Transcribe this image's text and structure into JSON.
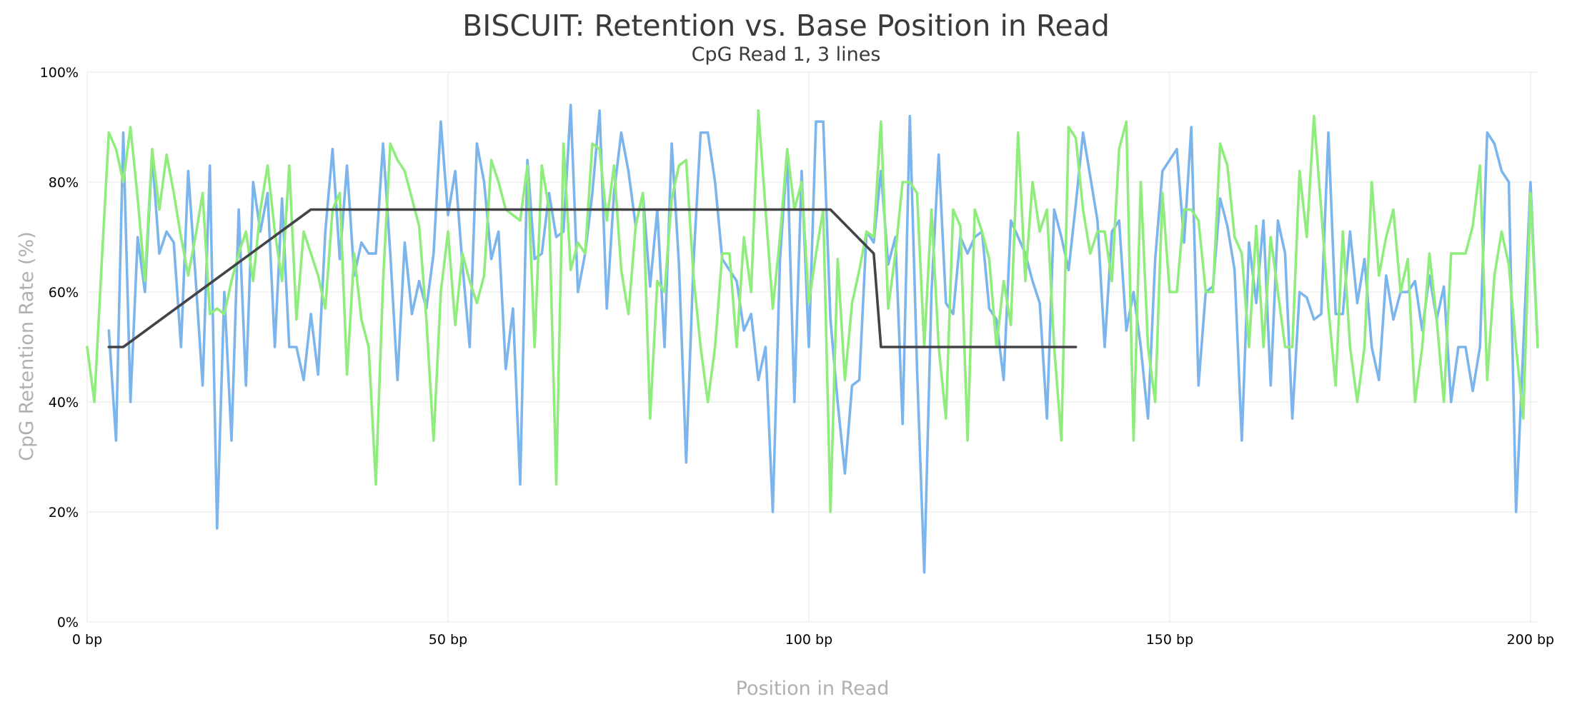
{
  "chart_data": {
    "type": "line",
    "title": "BISCUIT: Retention vs. Base Position in Read",
    "subtitle": "CpG Read 1, 3 lines",
    "xlabel": "Position in Read",
    "ylabel": "CpG Retention Rate (%)",
    "xlim": [
      0,
      201
    ],
    "ylim": [
      0,
      100
    ],
    "x_ticks": [
      {
        "value": 0,
        "label": "0 bp"
      },
      {
        "value": 50,
        "label": "50 bp"
      },
      {
        "value": 100,
        "label": "100 bp"
      },
      {
        "value": 150,
        "label": "150 bp"
      },
      {
        "value": 200,
        "label": "200 bp"
      }
    ],
    "y_ticks": [
      {
        "value": 0,
        "label": "0%"
      },
      {
        "value": 20,
        "label": "20%"
      },
      {
        "value": 40,
        "label": "40%"
      },
      {
        "value": 60,
        "label": "60%"
      },
      {
        "value": 80,
        "label": "80%"
      },
      {
        "value": 100,
        "label": "100%"
      }
    ],
    "grid": true,
    "legend": "none",
    "series": [
      {
        "color": "#7cb5ec",
        "x": [
          3,
          4,
          5,
          6,
          7,
          8,
          9,
          10,
          11,
          12,
          13,
          14,
          15,
          16,
          17,
          18,
          19,
          20,
          21,
          22,
          23,
          24,
          25,
          26,
          27,
          28,
          29,
          30,
          31,
          32,
          33,
          34,
          35,
          36,
          37,
          38,
          39,
          40,
          41,
          42,
          43,
          44,
          45,
          46,
          47,
          48,
          49,
          50,
          51,
          52,
          53,
          54,
          55,
          56,
          57,
          58,
          59,
          60,
          61,
          62,
          63,
          64,
          65,
          66,
          67,
          68,
          69,
          70,
          71,
          72,
          73,
          74,
          75,
          76,
          77,
          78,
          79,
          80,
          81,
          82,
          83,
          84,
          85,
          86,
          87,
          88,
          89,
          90,
          91,
          92,
          93,
          94,
          95,
          96,
          97,
          98,
          99,
          100,
          101,
          102,
          103,
          104,
          105,
          106,
          107,
          108,
          109,
          110,
          111,
          112,
          113,
          114,
          115,
          116,
          117,
          118,
          119,
          120,
          121,
          122,
          123,
          124,
          125,
          126,
          127,
          128,
          129,
          130,
          131,
          132,
          133,
          134,
          135,
          136,
          137,
          138,
          139,
          140,
          141,
          142,
          143,
          144,
          145,
          146,
          147,
          148,
          149,
          150,
          151,
          152,
          153,
          154,
          155,
          156,
          157,
          158,
          159,
          160,
          161,
          162,
          163,
          164,
          165,
          166,
          167,
          168,
          169,
          170,
          171,
          172,
          173,
          174,
          175,
          176,
          177,
          178,
          179,
          180,
          181,
          182,
          183,
          184,
          185,
          186,
          187,
          188,
          189,
          190,
          191,
          192,
          193,
          194,
          195,
          196,
          197,
          198,
          199,
          200,
          201
        ],
        "y": [
          53,
          33,
          89,
          40,
          70,
          60,
          85,
          67,
          71,
          69,
          50,
          82,
          63,
          43,
          83,
          17,
          60,
          33,
          75,
          43,
          80,
          71,
          78,
          50,
          77,
          50,
          50,
          44,
          56,
          45,
          71,
          86,
          66,
          83,
          63,
          69,
          67,
          67,
          87,
          67,
          44,
          69,
          56,
          62,
          57,
          67,
          91,
          74,
          82,
          65,
          50,
          87,
          80,
          66,
          71,
          46,
          57,
          25,
          84,
          66,
          67,
          78,
          70,
          71,
          94,
          60,
          67,
          78,
          93,
          57,
          78,
          89,
          82,
          72,
          78,
          61,
          75,
          50,
          87,
          65,
          29,
          65,
          89,
          89,
          80,
          66,
          64,
          62,
          53,
          56,
          44,
          50,
          20,
          66,
          85,
          40,
          82,
          50,
          91,
          91,
          55,
          40,
          27,
          43,
          44,
          71,
          69,
          82,
          65,
          70,
          36,
          92,
          46,
          9,
          60,
          85,
          58,
          56,
          70,
          67,
          70,
          71,
          57,
          55,
          44,
          73,
          70,
          67,
          62,
          58,
          37,
          75,
          70,
          64,
          76,
          89,
          81,
          73,
          50,
          71,
          73,
          53,
          60,
          50,
          37,
          66,
          82,
          84,
          86,
          69,
          90,
          43,
          60,
          61,
          77,
          72,
          64,
          33,
          69,
          58,
          73,
          43,
          73,
          67,
          37,
          60,
          59,
          55,
          56,
          89,
          56,
          56,
          71,
          58,
          66,
          50,
          44,
          63,
          55,
          60,
          60,
          62,
          53,
          63,
          55,
          61,
          40,
          50,
          50,
          42,
          50,
          89,
          87,
          82,
          80,
          20,
          50,
          80,
          50
        ]
      },
      {
        "color": "#90ed7d",
        "x": [
          0,
          1,
          2,
          3,
          4,
          5,
          6,
          7,
          8,
          9,
          10,
          11,
          12,
          13,
          14,
          15,
          16,
          17,
          18,
          19,
          20,
          21,
          22,
          23,
          24,
          25,
          26,
          27,
          28,
          29,
          30,
          31,
          32,
          33,
          34,
          35,
          36,
          37,
          38,
          39,
          40,
          41,
          42,
          43,
          44,
          45,
          46,
          47,
          48,
          49,
          50,
          51,
          52,
          53,
          54,
          55,
          56,
          57,
          58,
          59,
          60,
          61,
          62,
          63,
          64,
          65,
          66,
          67,
          68,
          69,
          70,
          71,
          72,
          73,
          74,
          75,
          76,
          77,
          78,
          79,
          80,
          81,
          82,
          83,
          84,
          85,
          86,
          87,
          88,
          89,
          90,
          91,
          92,
          93,
          94,
          95,
          96,
          97,
          98,
          99,
          100,
          101,
          102,
          103,
          104,
          105,
          106,
          107,
          108,
          109,
          110,
          111,
          112,
          113,
          114,
          115,
          116,
          117,
          118,
          119,
          120,
          121,
          122,
          123,
          124,
          125,
          126,
          127,
          128,
          129,
          130,
          131,
          132,
          133,
          134,
          135,
          136,
          137,
          138,
          139,
          140,
          141,
          142,
          143,
          144,
          145,
          146,
          147,
          148,
          149,
          150,
          151,
          152,
          153,
          154,
          155,
          156,
          157,
          158,
          159,
          160,
          161,
          162,
          163,
          164,
          165,
          166,
          167,
          168,
          169,
          170,
          171,
          172,
          173,
          174,
          175,
          176,
          177,
          178,
          179,
          180,
          181,
          182,
          183,
          184,
          185,
          186,
          187,
          188,
          189,
          190,
          191,
          192,
          193,
          194,
          195,
          196,
          197,
          198,
          199,
          200,
          201
        ],
        "y": [
          50,
          40,
          65,
          89,
          86,
          80,
          90,
          77,
          62,
          86,
          75,
          85,
          78,
          70,
          63,
          70,
          78,
          56,
          57,
          56,
          62,
          67,
          71,
          62,
          75,
          83,
          71,
          62,
          83,
          55,
          71,
          67,
          63,
          57,
          75,
          78,
          45,
          67,
          55,
          50,
          25,
          62,
          87,
          84,
          82,
          77,
          72,
          55,
          33,
          60,
          71,
          54,
          67,
          62,
          58,
          63,
          84,
          80,
          75,
          74,
          73,
          83,
          50,
          83,
          75,
          25,
          87,
          64,
          69,
          67,
          87,
          86,
          73,
          83,
          64,
          56,
          72,
          78,
          37,
          62,
          60,
          77,
          83,
          84,
          63,
          50,
          40,
          50,
          67,
          67,
          50,
          70,
          60,
          93,
          75,
          57,
          70,
          86,
          75,
          80,
          58,
          67,
          75,
          20,
          66,
          44,
          58,
          64,
          71,
          70,
          91,
          57,
          67,
          80,
          80,
          78,
          50,
          75,
          50,
          37,
          75,
          72,
          33,
          75,
          71,
          66,
          50,
          62,
          54,
          89,
          62,
          80,
          71,
          75,
          50,
          33,
          90,
          88,
          75,
          67,
          71,
          71,
          62,
          86,
          91,
          33,
          80,
          50,
          40,
          78,
          60,
          60,
          75,
          75,
          73,
          60,
          60,
          87,
          83,
          70,
          67,
          50,
          72,
          50,
          70,
          60,
          50,
          50,
          82,
          70,
          92,
          75,
          57,
          43,
          71,
          50,
          40,
          50,
          80,
          63,
          70,
          75,
          60,
          66,
          40,
          50,
          67,
          55,
          40,
          67,
          67,
          67,
          72,
          83,
          44,
          63,
          71,
          65,
          50,
          37,
          78,
          50
        ]
      },
      {
        "color": "#434348",
        "x": [
          3,
          5,
          31,
          103,
          109,
          110,
          137
        ],
        "y": [
          50,
          50,
          75,
          75,
          67,
          50,
          50
        ]
      }
    ]
  }
}
